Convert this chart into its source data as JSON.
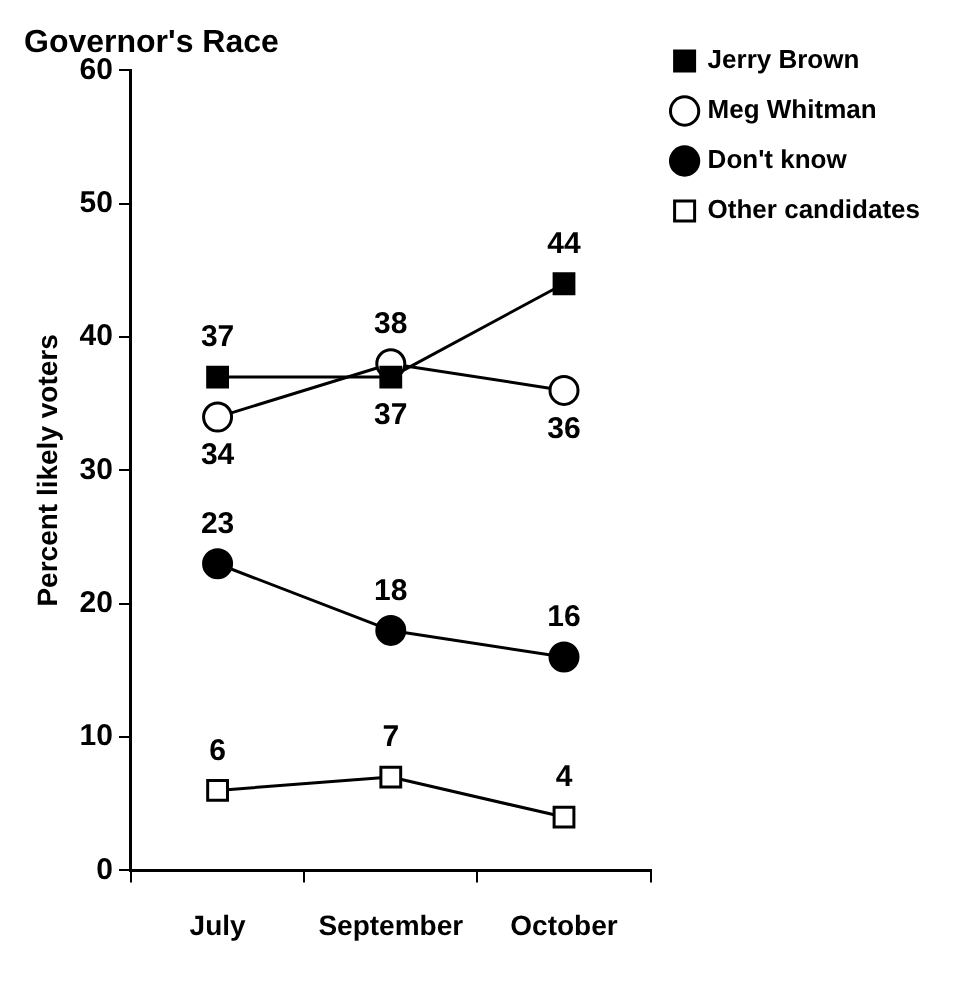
{
  "chart_data": {
    "type": "line",
    "title": "Governor's Race",
    "ylabel": "Percent likely voters",
    "categories": [
      "July",
      "September",
      "October"
    ],
    "series": [
      {
        "name": "Jerry Brown",
        "color": "#000000",
        "marker": "square",
        "values": [
          37,
          37,
          44
        ]
      },
      {
        "name": "Meg Whitman",
        "color": "#000000",
        "marker": "circle",
        "values": [
          34,
          38,
          36
        ]
      },
      {
        "name": "Don't know",
        "color": "#000000",
        "marker": "circle",
        "values": [
          23,
          18,
          16
        ]
      },
      {
        "name": "Other candidates",
        "color": "#000000",
        "marker": "square",
        "values": [
          6,
          7,
          4
        ]
      }
    ],
    "ylim": [
      0,
      60
    ],
    "yticks": [
      0,
      10,
      20,
      30,
      40,
      50,
      60
    ],
    "grid": false,
    "legend": "top right",
    "data_labels": true,
    "line_style": "solid"
  }
}
